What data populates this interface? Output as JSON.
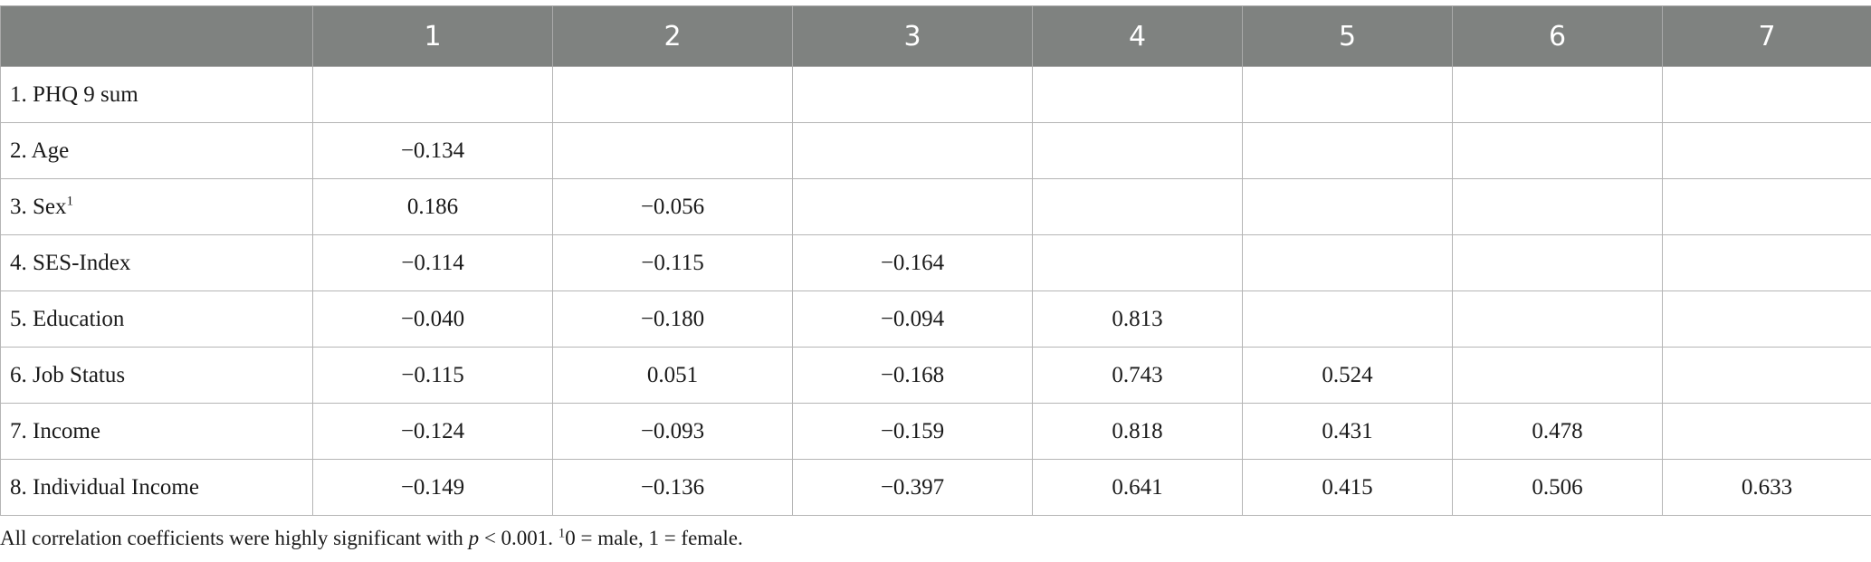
{
  "table": {
    "headers": [
      "",
      "1",
      "2",
      "3",
      "4",
      "5",
      "6",
      "7"
    ],
    "rows": [
      {
        "label": "1. PHQ 9 sum",
        "sup": "",
        "cells": [
          "",
          "",
          "",
          "",
          "",
          "",
          ""
        ]
      },
      {
        "label": "2. Age",
        "sup": "",
        "cells": [
          "−0.134",
          "",
          "",
          "",
          "",
          "",
          ""
        ]
      },
      {
        "label": "3. Sex",
        "sup": "1",
        "cells": [
          "0.186",
          "−0.056",
          "",
          "",
          "",
          "",
          ""
        ]
      },
      {
        "label": "4. SES-Index",
        "sup": "",
        "cells": [
          "−0.114",
          "−0.115",
          "−0.164",
          "",
          "",
          "",
          ""
        ]
      },
      {
        "label": "5. Education",
        "sup": "",
        "cells": [
          "−0.040",
          "−0.180",
          "−0.094",
          "0.813",
          "",
          "",
          ""
        ]
      },
      {
        "label": "6. Job Status",
        "sup": "",
        "cells": [
          "−0.115",
          "0.051",
          "−0.168",
          "0.743",
          "0.524",
          "",
          ""
        ]
      },
      {
        "label": "7. Income",
        "sup": "",
        "cells": [
          "−0.124",
          "−0.093",
          "−0.159",
          "0.818",
          "0.431",
          "0.478",
          ""
        ]
      },
      {
        "label": "8. Individual Income",
        "sup": "",
        "cells": [
          "−0.149",
          "−0.136",
          "−0.397",
          "0.641",
          "0.415",
          "0.506",
          "0.633"
        ]
      }
    ]
  },
  "footnote": {
    "prefix": "All correlation coefficients were highly significant with ",
    "p_symbol": "p",
    "p_value": " < 0.001. ",
    "sup_marker": "1",
    "coding": "0 = male, 1 = female."
  }
}
